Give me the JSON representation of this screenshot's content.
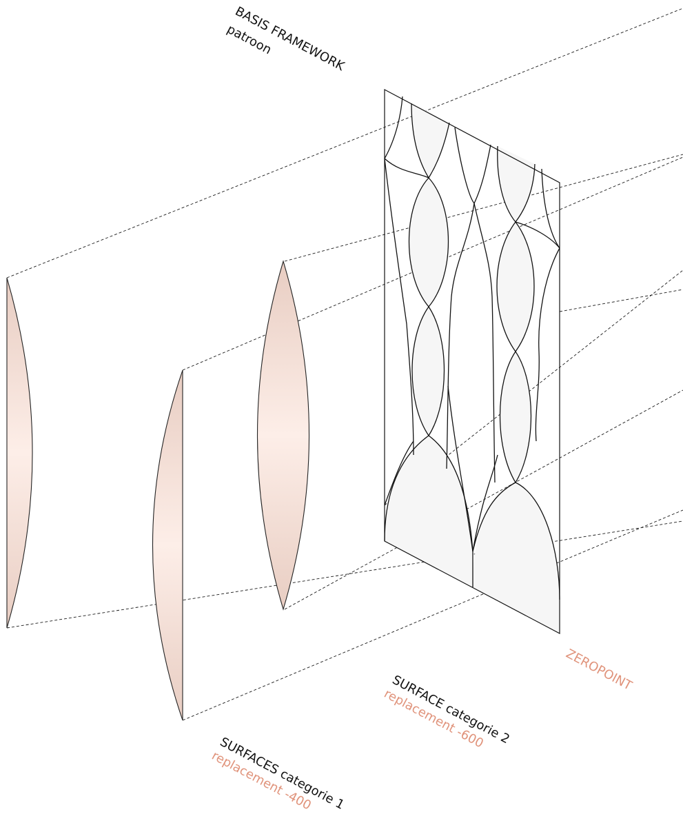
{
  "labels": {
    "basis_framework_title": "BASIS FRAMEWORK",
    "basis_framework_sub": "patroon",
    "surface_cat2_title": "SURFACE categorie 2",
    "surface_cat2_sub": "replacement -600",
    "surfaces_cat1_title": "SURFACES categorie 1",
    "surfaces_cat1_sub": "replacement -400",
    "zeropoint": "ZEROPOINT"
  },
  "colors": {
    "text_dark": "#111111",
    "text_accent": "#e0937b",
    "lens_light": "#fdeee8",
    "lens_dark": "#e8cdc2",
    "panel_cell_fill": "#f6f6f6",
    "line": "#111111"
  },
  "layers": [
    {
      "name": "basis-framework-panel",
      "type": "patterned-panel"
    },
    {
      "name": "surface-categorie-2",
      "type": "biconvex-lens"
    },
    {
      "name": "surfaces-categorie-1",
      "type": "plano-convex-lens"
    },
    {
      "name": "far-left-surface",
      "type": "plano-convex-lens"
    }
  ]
}
